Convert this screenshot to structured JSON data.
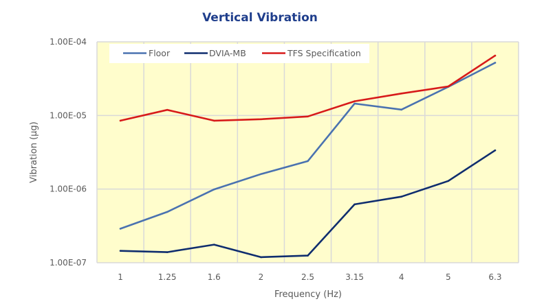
{
  "chart_data": {
    "type": "line",
    "title": "Vertical Vibration",
    "xlabel": "Frequency (Hz)",
    "ylabel": "Vibration (µg)",
    "yscale": "log",
    "ylim": [
      1e-07,
      0.0001
    ],
    "y_ticks": [
      1e-07,
      1e-06,
      1e-05,
      0.0001
    ],
    "y_tick_labels": [
      "1.00E-07",
      "1.00E-06",
      "1.00E-05",
      "1.00E-04"
    ],
    "categories": [
      "1",
      "1.25",
      "1.6",
      "2",
      "2.5",
      "3.15",
      "4",
      "5",
      "6.3"
    ],
    "grid": true,
    "legend_position": "top",
    "plot_background": "#fffdcc",
    "series": [
      {
        "name": "Floor",
        "color": "#4a72b0",
        "values": [
          2.9e-07,
          4.9e-07,
          9.9e-07,
          1.6e-06,
          2.4e-06,
          1.45e-05,
          1.2e-05,
          2.45e-05,
          5.2e-05
        ]
      },
      {
        "name": "DVIA-MB",
        "color": "#0f2d6e",
        "values": [
          1.45e-07,
          1.39e-07,
          1.76e-07,
          1.19e-07,
          1.25e-07,
          6.2e-07,
          7.9e-07,
          1.29e-06,
          3.36e-06
        ]
      },
      {
        "name": "TFS Specification",
        "color": "#d71a1a",
        "values": [
          8.5e-06,
          1.19e-05,
          8.5e-06,
          8.9e-06,
          9.7e-06,
          1.56e-05,
          1.99e-05,
          2.48e-05,
          6.5e-05
        ]
      }
    ]
  }
}
